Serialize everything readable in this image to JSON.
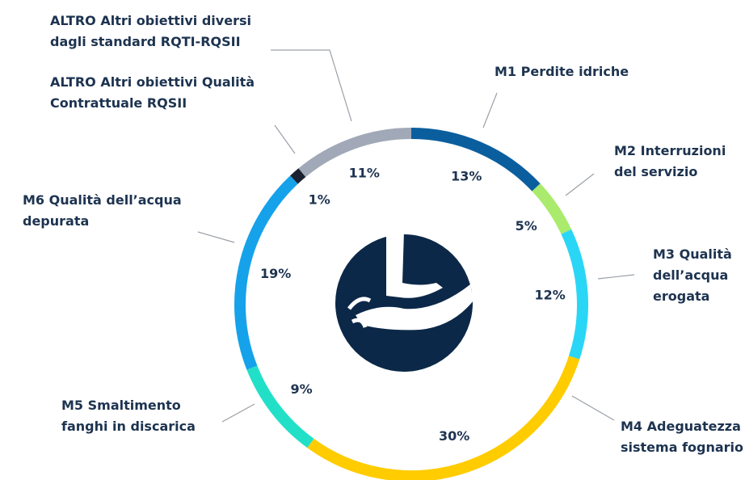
{
  "chart_data": {
    "type": "donut",
    "categories": [
      "M1 Perdite idriche",
      "M2 Interruzioni del servizio",
      "M3 Qualità dell’acqua erogata",
      "M4 Adeguatezza sistema fognario",
      "M5 Smaltimento fanghi in discarica",
      "M6 Qualità dell’acqua depurata",
      "ALTRO Altri obiettivi Qualità Contrattuale RQSII",
      "ALTRO Altri obiettivi diversi dagli standard RQTI-RQSII"
    ],
    "values": [
      13,
      5,
      12,
      30,
      9,
      19,
      1,
      11
    ],
    "value_labels": [
      "13%",
      "5%",
      "12%",
      "30%",
      "9%",
      "19%",
      "1%",
      "11%"
    ],
    "colors": [
      "#0b5e9e",
      "#aaea6c",
      "#2ad6f6",
      "#ffcc00",
      "#22e0c8",
      "#16a2ea",
      "#1b2130",
      "#a1a9b8"
    ]
  }
}
